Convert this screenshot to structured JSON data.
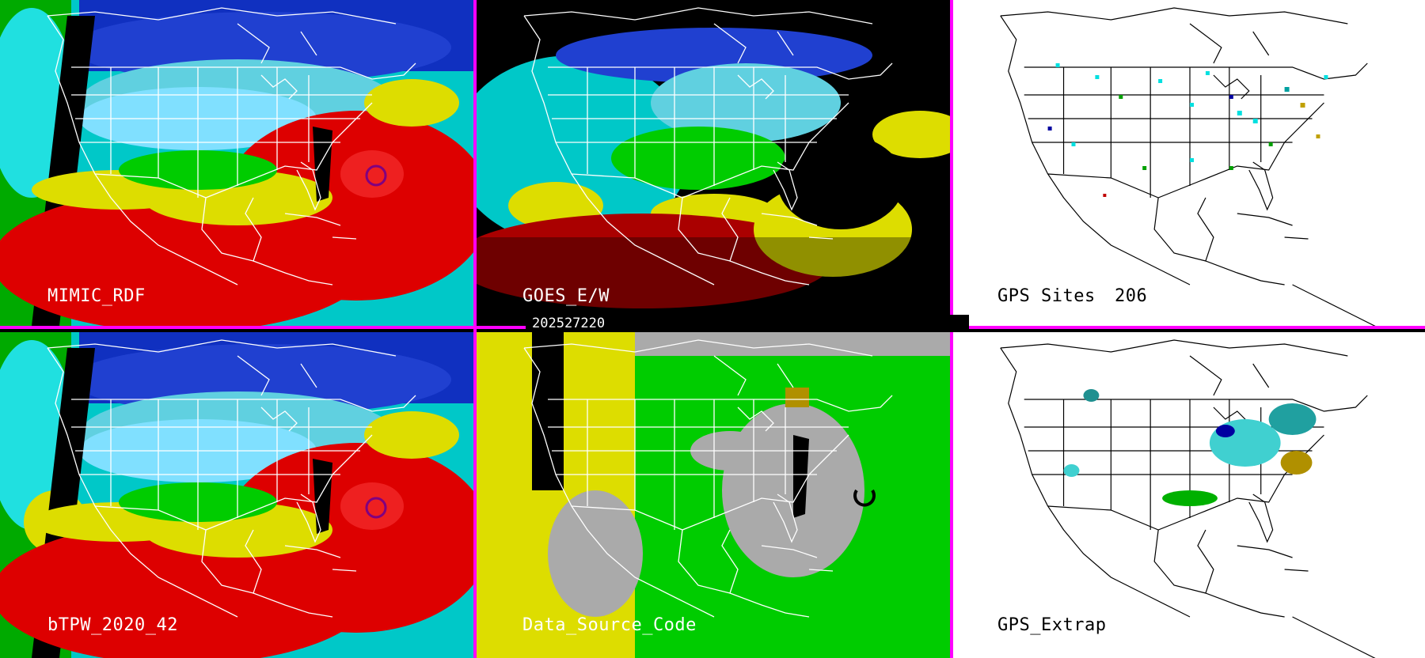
{
  "timestamp": "202527220",
  "panels": [
    {
      "id": "tl",
      "label": "MIMIC_RDF"
    },
    {
      "id": "tm",
      "label": "GOES_E/W"
    },
    {
      "id": "tr",
      "label": "GPS Sites",
      "count": "206"
    },
    {
      "id": "bl",
      "label": "bTPW_2020_42"
    },
    {
      "id": "bm",
      "label": "Data_Source_Code"
    },
    {
      "id": "br",
      "label": "GPS_Extrap"
    }
  ],
  "colors": {
    "divider": "#ff00ff",
    "tpw_palette": [
      "#ff0000",
      "#ffff00",
      "#00cc00",
      "#00ffff",
      "#0000ff",
      "#000080"
    ],
    "source_palette": [
      "#aaaaaa",
      "#dddd00",
      "#00cc00",
      "#000000"
    ]
  }
}
